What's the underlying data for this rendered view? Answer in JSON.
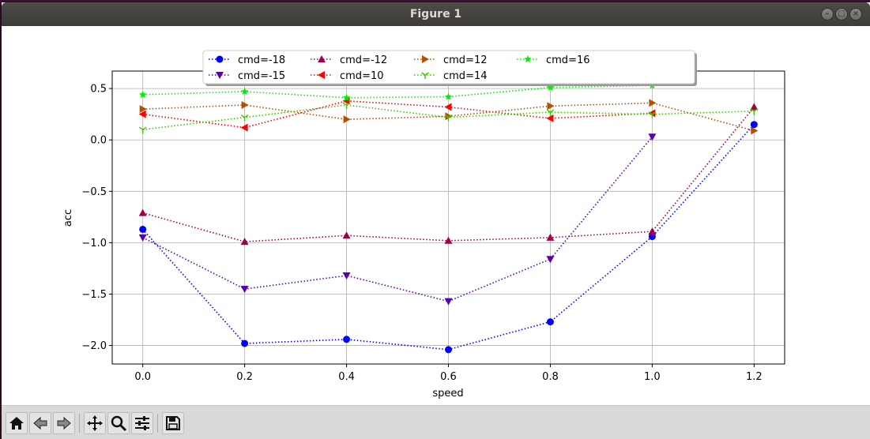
{
  "window": {
    "title": "Figure 1"
  },
  "toolbar": {
    "buttons": [
      {
        "name": "home-icon"
      },
      {
        "name": "back-icon"
      },
      {
        "name": "forward-icon"
      },
      {
        "name": "pan-icon"
      },
      {
        "name": "zoom-icon"
      },
      {
        "name": "configure-subplots-icon"
      },
      {
        "name": "save-icon"
      }
    ]
  },
  "chart_data": {
    "type": "line",
    "title": "",
    "xlabel": "speed",
    "ylabel": "acc",
    "xlim": [
      -0.06,
      1.26
    ],
    "ylim": [
      -2.18,
      0.67
    ],
    "xticks": [
      0.0,
      0.2,
      0.4,
      0.6,
      0.8,
      1.0,
      1.2
    ],
    "xtick_labels": [
      "0.0",
      "0.2",
      "0.4",
      "0.6",
      "0.8",
      "1.0",
      "1.2"
    ],
    "yticks": [
      -2.0,
      -1.5,
      -1.0,
      -0.5,
      0.0,
      0.5
    ],
    "ytick_labels": [
      "−2.0",
      "−1.5",
      "−1.0",
      "−0.5",
      "0.0",
      "0.5"
    ],
    "grid": true,
    "legend_position": "top-center",
    "line_style": "dotted",
    "series": [
      {
        "name": "cmd=-18",
        "color": "#0000ff",
        "marker": "circle",
        "x": [
          0.0,
          0.2,
          0.4,
          0.6,
          0.8,
          1.0,
          1.2
        ],
        "y": [
          -0.87,
          -1.98,
          -1.94,
          -2.04,
          -1.77,
          -0.94,
          0.15
        ]
      },
      {
        "name": "cmd=-15",
        "color": "#5a00b4",
        "marker": "triangle-down",
        "x": [
          0.0,
          0.2,
          0.4,
          0.6,
          0.8,
          1.0
        ],
        "y": [
          -0.95,
          -1.45,
          -1.32,
          -1.57,
          -1.16,
          0.03
        ]
      },
      {
        "name": "cmd=-12",
        "color": "#a0004b",
        "marker": "triangle-up",
        "x": [
          0.0,
          0.2,
          0.4,
          0.6,
          0.8,
          1.0,
          1.2
        ],
        "y": [
          -0.71,
          -0.99,
          -0.93,
          -0.98,
          -0.95,
          -0.89,
          0.32
        ]
      },
      {
        "name": "cmd=10",
        "color": "#ff0000",
        "marker": "triangle-left",
        "x": [
          0.0,
          0.2,
          0.4,
          0.6,
          0.8,
          1.0
        ],
        "y": [
          0.25,
          0.12,
          0.38,
          0.32,
          0.21,
          0.26
        ]
      },
      {
        "name": "cmd=12",
        "color": "#b45000",
        "marker": "triangle-right",
        "x": [
          0.0,
          0.2,
          0.4,
          0.6,
          0.8,
          1.0,
          1.2
        ],
        "y": [
          0.3,
          0.34,
          0.2,
          0.23,
          0.33,
          0.36,
          0.09
        ]
      },
      {
        "name": "cmd=14",
        "color": "#3cc800",
        "marker": "tri-down",
        "x": [
          0.0,
          0.2,
          0.4,
          0.6,
          0.8,
          1.0,
          1.2
        ],
        "y": [
          0.1,
          0.22,
          0.34,
          0.22,
          0.27,
          0.25,
          0.28
        ]
      },
      {
        "name": "cmd=16",
        "color": "#00f000",
        "marker": "star",
        "x": [
          0.0,
          0.2,
          0.4,
          0.6,
          0.8,
          1.0
        ],
        "y": [
          0.44,
          0.47,
          0.41,
          0.42,
          0.51,
          0.53
        ]
      }
    ]
  }
}
